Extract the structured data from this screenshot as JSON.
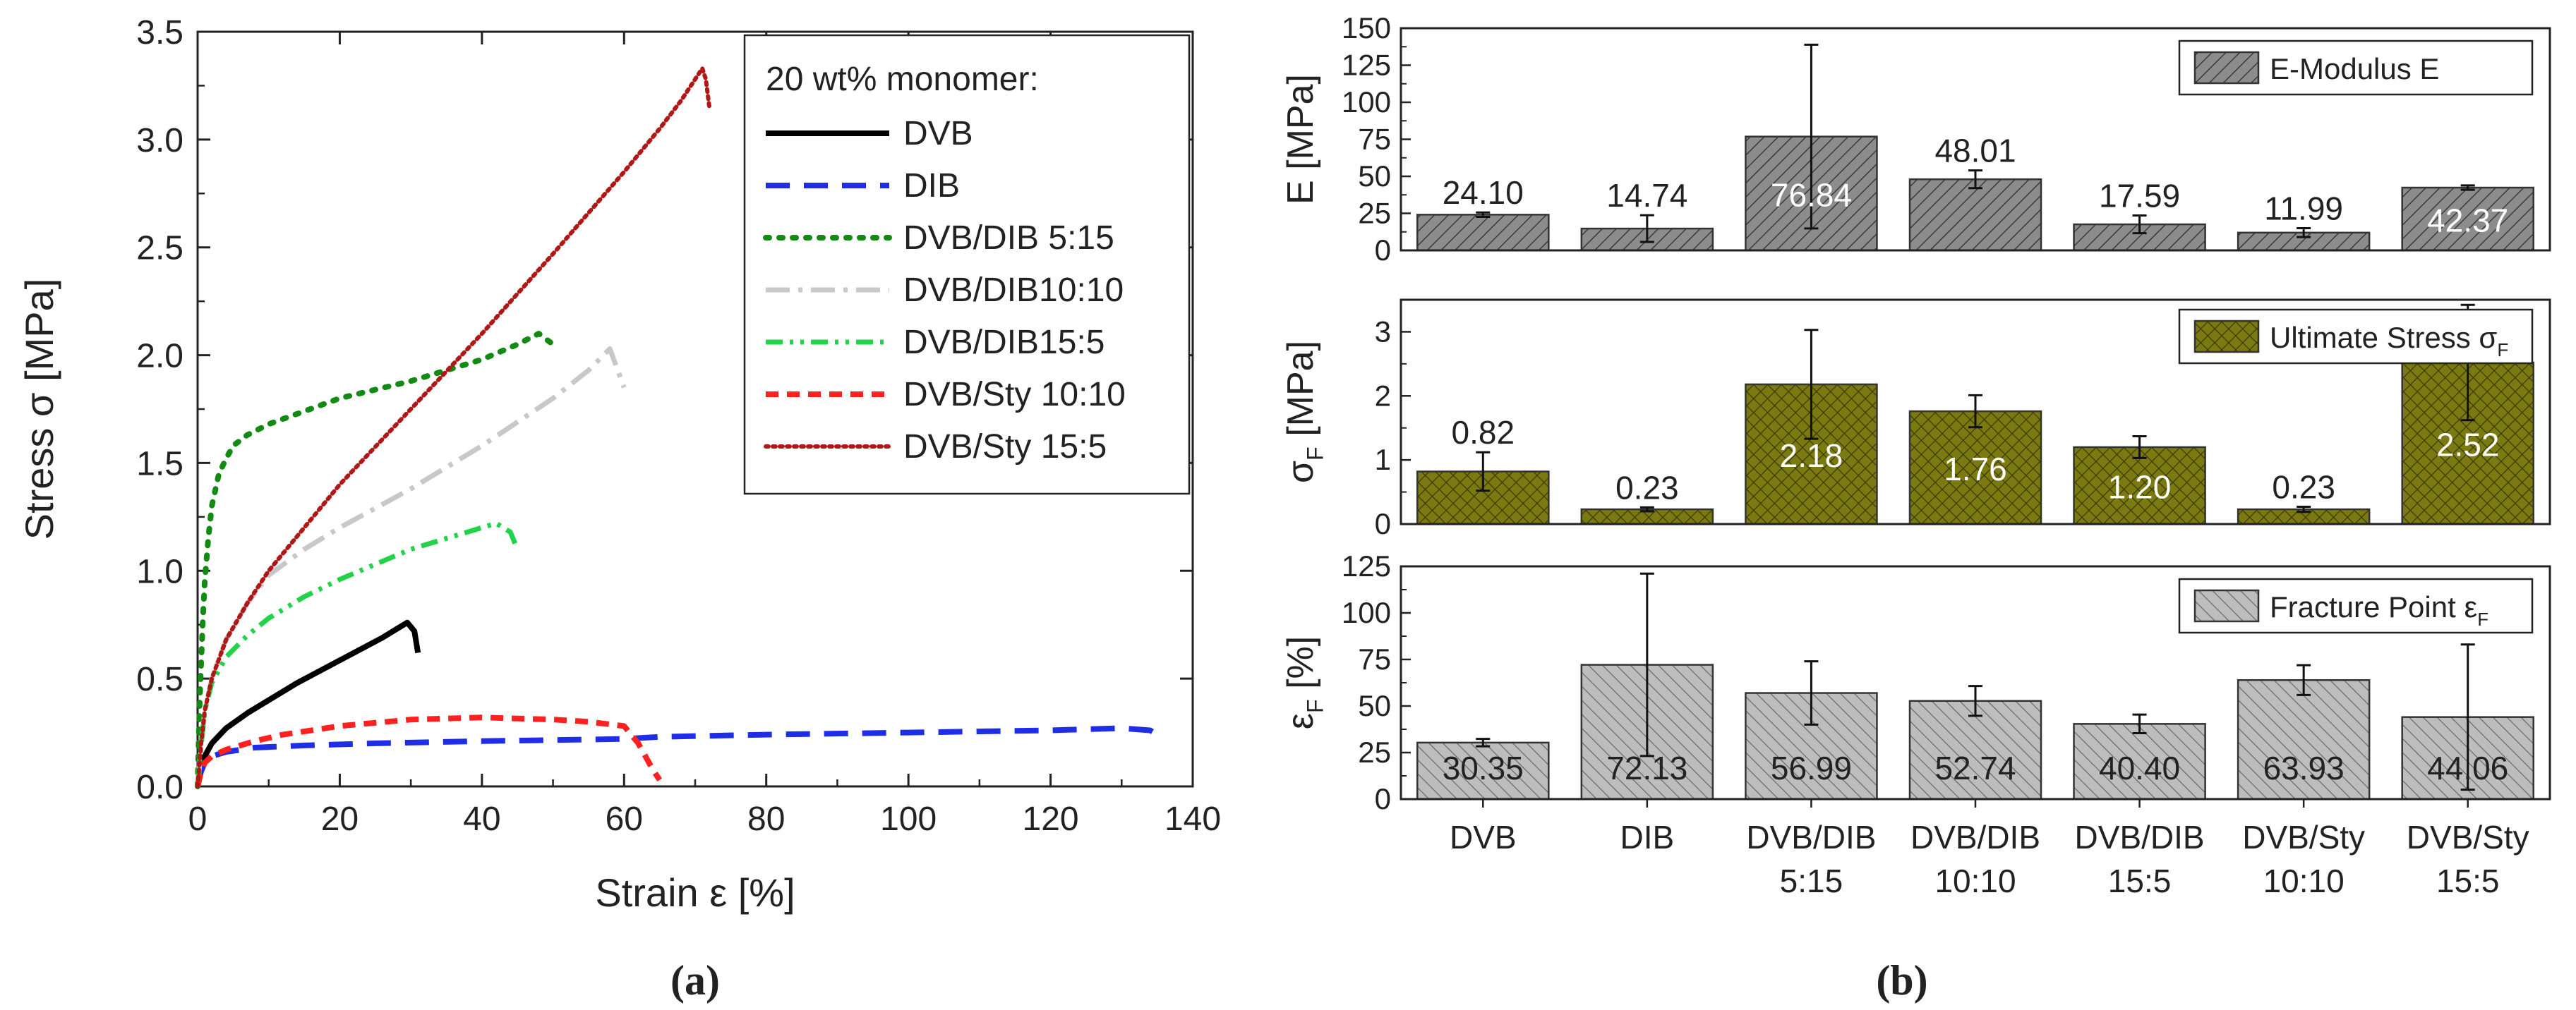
{
  "panel_a": {
    "caption_label": "(a)",
    "chart_data": {
      "type": "line",
      "title": "",
      "xlabel": "Strain ε [%]",
      "ylabel": "Stress σ [MPa]",
      "xlim": [
        0,
        140
      ],
      "ylim": [
        0,
        3.5
      ],
      "xticks": [
        0,
        20,
        40,
        60,
        80,
        100,
        120,
        140
      ],
      "yticks": [
        0.0,
        0.5,
        1.0,
        1.5,
        2.0,
        2.5,
        3.0,
        3.5
      ],
      "legend_title": "20 wt% monomer:",
      "legend_position": "top-right",
      "series": [
        {
          "name": "DVB",
          "color": "#000000",
          "dash": "solid",
          "x": [
            0,
            0.5,
            1,
            2,
            4,
            7,
            10,
            14,
            18,
            22,
            26,
            28,
            29.5,
            30.5,
            31
          ],
          "y": [
            0,
            0.08,
            0.14,
            0.2,
            0.27,
            0.34,
            0.4,
            0.48,
            0.55,
            0.62,
            0.69,
            0.73,
            0.76,
            0.72,
            0.62
          ]
        },
        {
          "name": "DIB",
          "color": "#1f2ee6",
          "dash": "longdash",
          "x": [
            0,
            0.5,
            1,
            2,
            4,
            8,
            15,
            25,
            40,
            60,
            65,
            80,
            100,
            120,
            130,
            134,
            136
          ],
          "y": [
            0,
            0.07,
            0.11,
            0.14,
            0.16,
            0.18,
            0.19,
            0.2,
            0.21,
            0.22,
            0.23,
            0.24,
            0.25,
            0.26,
            0.27,
            0.26,
            0.22
          ]
        },
        {
          "name": "DVB/DIB 5:15",
          "color": "#138a13",
          "dash": "dot",
          "x": [
            0,
            0.3,
            0.7,
            1,
            1.5,
            2,
            3,
            4,
            5,
            7,
            10,
            15,
            20,
            30,
            40,
            45,
            48,
            50
          ],
          "y": [
            0,
            0.4,
            0.75,
            0.95,
            1.15,
            1.3,
            1.45,
            1.52,
            1.58,
            1.63,
            1.68,
            1.74,
            1.8,
            1.88,
            1.98,
            2.05,
            2.1,
            2.05
          ]
        },
        {
          "name": "DVB/DIB10:10",
          "color": "#c8c8c8",
          "dash": "dashdot",
          "x": [
            0,
            1,
            2,
            4,
            7,
            10,
            15,
            20,
            30,
            40,
            50,
            55,
            58,
            60
          ],
          "y": [
            0,
            0.35,
            0.5,
            0.68,
            0.85,
            0.98,
            1.1,
            1.2,
            1.38,
            1.58,
            1.8,
            1.93,
            2.03,
            1.85
          ]
        },
        {
          "name": "DVB/DIB15:5",
          "color": "#22d34a",
          "dash": "dashdotdot",
          "x": [
            0,
            0.5,
            1,
            2,
            4,
            7,
            10,
            15,
            20,
            25,
            30,
            35,
            40,
            42,
            44,
            45
          ],
          "y": [
            0,
            0.2,
            0.35,
            0.48,
            0.6,
            0.7,
            0.78,
            0.88,
            0.96,
            1.03,
            1.1,
            1.15,
            1.2,
            1.22,
            1.18,
            1.1
          ]
        },
        {
          "name": "DVB/Sty 10:10",
          "color": "#ff2020",
          "dash": "dash",
          "x": [
            0,
            0.5,
            1,
            2,
            4,
            8,
            12,
            20,
            30,
            40,
            50,
            55,
            60,
            62,
            64,
            65
          ],
          "y": [
            0,
            0.07,
            0.11,
            0.14,
            0.17,
            0.21,
            0.24,
            0.28,
            0.31,
            0.32,
            0.31,
            0.3,
            0.28,
            0.2,
            0.08,
            0.03
          ]
        },
        {
          "name": "DVB/Sty 15:5",
          "color": "#b01818",
          "dash": "finedot",
          "x": [
            0,
            0.5,
            1,
            2,
            4,
            7,
            10,
            15,
            20,
            30,
            40,
            50,
            60,
            65,
            68,
            70,
            71,
            71.5,
            72
          ],
          "y": [
            0,
            0.2,
            0.35,
            0.5,
            0.68,
            0.85,
            1.0,
            1.2,
            1.4,
            1.75,
            2.1,
            2.47,
            2.85,
            3.05,
            3.18,
            3.28,
            3.33,
            3.28,
            3.15
          ]
        }
      ]
    }
  },
  "panel_b": {
    "caption_label": "(b)",
    "categories": [
      {
        "line1": "DVB",
        "line2": ""
      },
      {
        "line1": "DIB",
        "line2": ""
      },
      {
        "line1": "DVB/DIB",
        "line2": "5:15"
      },
      {
        "line1": "DVB/DIB",
        "line2": "10:10"
      },
      {
        "line1": "DVB/DIB",
        "line2": "15:5"
      },
      {
        "line1": "DVB/Sty",
        "line2": "10:10"
      },
      {
        "line1": "DVB/Sty",
        "line2": "15:5"
      }
    ],
    "chart_data": [
      {
        "type": "bar",
        "name": "modulus",
        "ylabel": "E [MPa]",
        "ylim": [
          0,
          150
        ],
        "yticks": [
          0,
          25,
          50,
          75,
          100,
          125,
          150
        ],
        "legend": "E-Modulus E",
        "legend_position": "top-right",
        "pattern": "hatch",
        "fill": "#8c8c8c",
        "values": [
          24.1,
          14.74,
          76.84,
          48.01,
          17.59,
          11.99,
          42.37
        ],
        "labels": [
          "24.10",
          "14.74",
          "76.84",
          "48.01",
          "17.59",
          "11.99",
          "42.37"
        ],
        "errors": [
          1.5,
          9,
          62,
          6,
          6,
          3,
          1.5
        ],
        "label_inside": [
          false,
          false,
          true,
          false,
          false,
          false,
          true
        ]
      },
      {
        "type": "bar",
        "name": "stress",
        "ylabel": "σF [MPa]",
        "ylim": [
          0,
          3.5
        ],
        "yticks": [
          0,
          1,
          2,
          3
        ],
        "legend": "Ultimate Stress σF",
        "legend_position": "top-right",
        "pattern": "crosshatch",
        "fill": "#7a7a10",
        "values": [
          0.82,
          0.23,
          2.18,
          1.76,
          1.2,
          0.23,
          2.52
        ],
        "labels": [
          "0.82",
          "0.23",
          "2.18",
          "1.76",
          "1.20",
          "0.23",
          "2.52"
        ],
        "errors": [
          0.3,
          0.03,
          0.85,
          0.25,
          0.17,
          0.04,
          0.9
        ],
        "label_inside": [
          false,
          false,
          true,
          true,
          true,
          false,
          true
        ]
      },
      {
        "type": "bar",
        "name": "fracture",
        "ylabel": "εF [%]",
        "ylim": [
          0,
          125
        ],
        "yticks": [
          0,
          25,
          50,
          75,
          100,
          125
        ],
        "legend": "Fracture Point εF",
        "legend_position": "top-right",
        "pattern": "backhatch",
        "fill": "#bdbdbd",
        "values": [
          30.35,
          72.13,
          56.99,
          52.74,
          40.4,
          63.93,
          44.06
        ],
        "labels": [
          "30.35",
          "72.13",
          "56.99",
          "52.74",
          "40.40",
          "63.93",
          "44.06"
        ],
        "errors": [
          2,
          49,
          17,
          8,
          5,
          8,
          39
        ],
        "label_inside": [
          true,
          true,
          true,
          true,
          true,
          true,
          true
        ]
      }
    ]
  }
}
